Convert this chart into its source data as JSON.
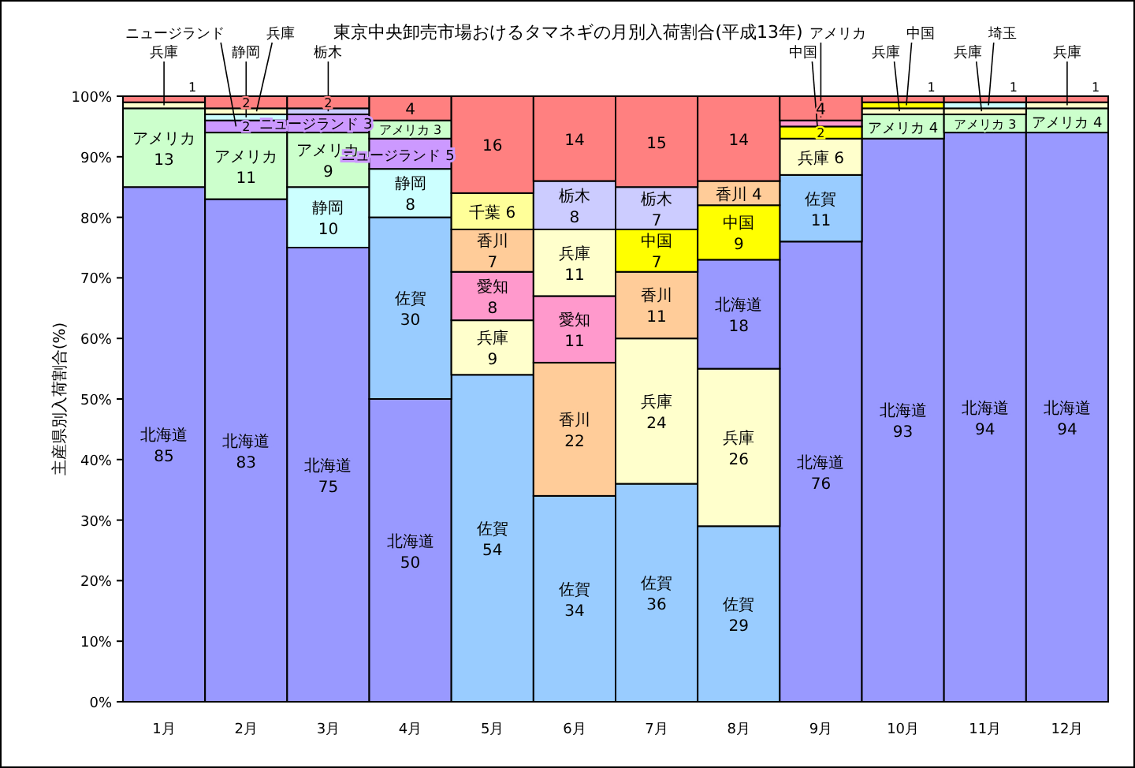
{
  "chart_data": {
    "type": "bar",
    "stacked": true,
    "title": "東京中央卸売市場おけるタマネギの月別入荷割合(平成13年)",
    "ylabel": "主産県別入荷割合(%)",
    "categories": [
      "1月",
      "2月",
      "3月",
      "4月",
      "5月",
      "6月",
      "7月",
      "8月",
      "9月",
      "10月",
      "11月",
      "12月"
    ],
    "ylim": [
      0,
      100
    ],
    "yticks": [
      {
        "value": 0,
        "label": "0%"
      },
      {
        "value": 10,
        "label": "10%"
      },
      {
        "value": 20,
        "label": "20%"
      },
      {
        "value": 30,
        "label": "30%"
      },
      {
        "value": 40,
        "label": "40%"
      },
      {
        "value": 50,
        "label": "50%"
      },
      {
        "value": 60,
        "label": "60%"
      },
      {
        "value": 70,
        "label": "70%"
      },
      {
        "value": 80,
        "label": "80%"
      },
      {
        "value": 90,
        "label": "90%"
      },
      {
        "value": 100,
        "label": "100%"
      }
    ],
    "series": [
      {
        "values": [
          85,
          83,
          75,
          50,
          54,
          34,
          36,
          29,
          76,
          93,
          94,
          94
        ],
        "colors": [
          "#9999ff",
          "#9999ff",
          "#9999ff",
          "#9999ff",
          "#99ccff",
          "#99ccff",
          "#99ccff",
          "#99ccff",
          "#9999ff",
          "#9999ff",
          "#9999ff",
          "#9999ff"
        ],
        "value_labels": [
          "北海道\n85",
          "北海道\n83",
          "北海道\n75",
          "北海道\n50",
          "佐賀\n54",
          "佐賀\n34",
          "佐賀\n36",
          "佐賀\n29",
          "北海道\n76",
          "北海道\n93",
          "北海道\n94",
          "北海道\n94"
        ]
      },
      {
        "values": [
          13,
          11,
          10,
          30,
          9,
          22,
          24,
          26,
          11,
          4,
          3,
          4
        ],
        "colors": [
          "#ccffcc",
          "#ccffcc",
          "#ccffff",
          "#99ccff",
          "#ffffcc",
          "#ffcc99",
          "#ffffcc",
          "#ffffcc",
          "#99ccff",
          "#ccffcc",
          "#ccffcc",
          "#ccffcc"
        ],
        "value_labels": [
          "アメリカ\n13",
          "アメリカ\n11",
          "静岡\n10",
          "佐賀\n30",
          "兵庫\n9",
          "香川\n22",
          "兵庫\n24",
          "兵庫\n26",
          "佐賀\n11",
          "アメリカ 4",
          "アメリカ 3",
          "アメリカ 4"
        ]
      },
      {
        "values": [
          1,
          2,
          9,
          8,
          8,
          11,
          11,
          18,
          6,
          1,
          1,
          1
        ],
        "colors": [
          "#ffffcc",
          "#cc99ff",
          "#ccffcc",
          "#ccffff",
          "#ff99cc",
          "#ff99cc",
          "#ffcc99",
          "#9999ff",
          "#ffffcc",
          "#ffffcc",
          "#ffffcc",
          "#ffffcc"
        ],
        "value_labels": [
          null,
          "2",
          "アメリカ\n9",
          "静岡\n8",
          "愛知\n8",
          "愛知\n11",
          "香川\n11",
          "北海道\n18",
          "兵庫 6",
          null,
          null,
          null
        ]
      },
      {
        "values": [
          1,
          1,
          3,
          5,
          7,
          11,
          7,
          9,
          2,
          1,
          1,
          1
        ],
        "colors": [
          "#ff8080",
          "#ccffff",
          "#cc99ff",
          "#cc99ff",
          "#ffcc99",
          "#ffffcc",
          "#ffff00",
          "#ffff00",
          "#ffff00",
          "#ffff00",
          "#ccffff",
          "#ff8080"
        ],
        "value_labels": [
          "1",
          null,
          "ニュージランド 3",
          "ニュージランド 5",
          "香川\n7",
          "兵庫\n11",
          "中国\n7",
          "中国\n9",
          "2",
          null,
          null,
          "1"
        ]
      },
      {
        "values": [
          null,
          1,
          1,
          3,
          6,
          8,
          7,
          4,
          1,
          1,
          1,
          null
        ],
        "colors": [
          null,
          "#ffffcc",
          "#ccccff",
          "#ccffcc",
          "#ffff99",
          "#ccccff",
          "#ccccff",
          "#ffcc99",
          "#ff99cc",
          "#ff8080",
          "#ff8080",
          null
        ],
        "value_labels": [
          null,
          null,
          null,
          "アメリカ 3",
          "千葉 6",
          "栃木\n8",
          "栃木\n7",
          "香川 4",
          null,
          "1",
          "1",
          null
        ]
      },
      {
        "values": [
          null,
          2,
          2,
          4,
          16,
          14,
          15,
          14,
          4,
          null,
          null,
          null
        ],
        "colors": [
          null,
          "#ff8080",
          "#ff8080",
          "#ff8080",
          "#ff8080",
          "#ff8080",
          "#ff8080",
          "#ff8080",
          "#ff8080",
          null,
          null,
          null
        ],
        "value_labels": [
          null,
          "2",
          "2",
          "4",
          "16",
          "14",
          "15",
          "14",
          "4",
          null,
          null,
          null
        ]
      }
    ],
    "annotations": [
      {
        "text": "兵庫",
        "x": "1月",
        "y": 98.5
      },
      {
        "text": "ニュージランド",
        "x": "2月",
        "y": 95
      },
      {
        "text": "静岡",
        "x": "2月",
        "y": 96.5
      },
      {
        "text": "兵庫",
        "x": "2月",
        "y": 97.5
      },
      {
        "text": "栃木",
        "x": "3月",
        "y": 97.5
      },
      {
        "text": "中国",
        "x": "9月",
        "y": 95
      },
      {
        "text": "アメリカ",
        "x": "9月",
        "y": 96.5
      },
      {
        "text": "兵庫",
        "x": "10月",
        "y": 97.5
      },
      {
        "text": "中国",
        "x": "10月",
        "y": 98.5
      },
      {
        "text": "兵庫",
        "x": "11月",
        "y": 97.5
      },
      {
        "text": "埼玉",
        "x": "11月",
        "y": 98.5
      },
      {
        "text": "兵庫",
        "x": "12月",
        "y": 98.5
      }
    ]
  }
}
